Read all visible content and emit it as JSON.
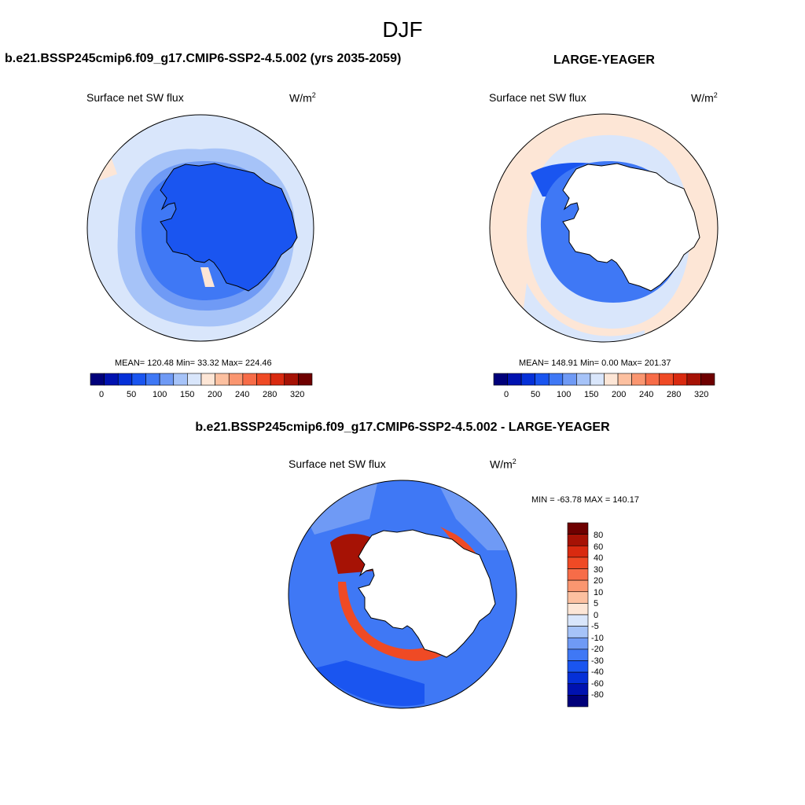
{
  "figure_title": "DJF",
  "palette": [
    "#00007a",
    "#0012b0",
    "#0530d8",
    "#1a55f0",
    "#3f78f5",
    "#6f9af5",
    "#a6c3f8",
    "#d9e6fb",
    "#fde6d6",
    "#fcc0a0",
    "#fa9670",
    "#f76c48",
    "#ef4a25",
    "#d92a10",
    "#a61205",
    "#6e0000"
  ],
  "panels": [
    {
      "title": "b.e21.BSSP245cmip6.f09_g17.CMIP6-SSP2-4.5.002 (yrs 2035-2059)",
      "variable": "Surface net SW flux",
      "units": "W/m",
      "units_sup": "2",
      "stats": "MEAN= 120.48  Min=  33.32  Max= 224.46",
      "colorbar_labels": [
        "0",
        "50",
        "100",
        "150",
        "200",
        "240",
        "280",
        "320"
      ]
    },
    {
      "title": "LARGE-YEAGER",
      "variable": "Surface net SW flux",
      "units": "W/m",
      "units_sup": "2",
      "stats": "MEAN= 148.91  Min=   0.00  Max= 201.37",
      "colorbar_labels": [
        "0",
        "50",
        "100",
        "150",
        "200",
        "240",
        "280",
        "320"
      ]
    },
    {
      "title": "b.e21.BSSP245cmip6.f09_g17.CMIP6-SSP2-4.5.002 - LARGE-YEAGER",
      "variable": "Surface net SW flux",
      "units": "W/m",
      "units_sup": "2",
      "stats": "MIN = -63.78 MAX = 140.17",
      "colorbar_labels": [
        "80",
        "60",
        "40",
        "30",
        "20",
        "10",
        "5",
        "0",
        "-5",
        "-10",
        "-20",
        "-30",
        "-40",
        "-60",
        "-80"
      ]
    }
  ]
}
